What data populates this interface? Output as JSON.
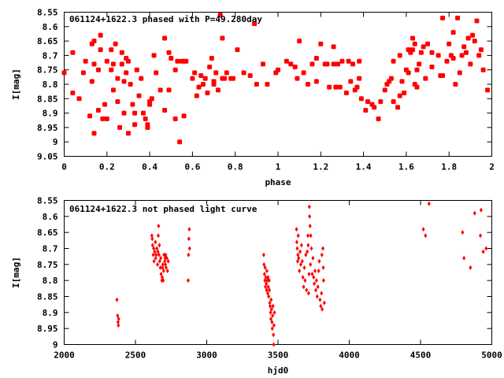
{
  "colors": {
    "points": "#ff0000",
    "frame": "#000000",
    "background": "#ffffff"
  },
  "chart_data": [
    {
      "type": "scatter",
      "title": "061124+1622.3 phased with P=49.280day",
      "xlabel": "phase",
      "ylabel": "I[mag]",
      "xlim": [
        0,
        2
      ],
      "ylim": [
        8.55,
        9.05
      ],
      "y_inverted": true,
      "xticks": [
        "0",
        "0.2",
        "0.4",
        "0.6",
        "0.8",
        "1",
        "1.2",
        "1.4",
        "1.6",
        "1.8",
        "2"
      ],
      "yticks": [
        "8.55",
        "8.6",
        "8.65",
        "8.7",
        "8.75",
        "8.8",
        "8.85",
        "8.9",
        "8.95",
        "9",
        "9.05"
      ],
      "marker": "filled-circle-large",
      "points": [
        [
          0.0,
          8.76
        ],
        [
          0.04,
          8.83
        ],
        [
          0.04,
          8.69
        ],
        [
          0.07,
          8.85
        ],
        [
          0.09,
          8.76
        ],
        [
          0.1,
          8.72
        ],
        [
          0.12,
          8.91
        ],
        [
          0.13,
          8.79
        ],
        [
          0.13,
          8.66
        ],
        [
          0.14,
          8.73
        ],
        [
          0.14,
          8.65
        ],
        [
          0.14,
          8.97
        ],
        [
          0.16,
          8.89
        ],
        [
          0.16,
          8.75
        ],
        [
          0.17,
          8.68
        ],
        [
          0.17,
          8.63
        ],
        [
          0.18,
          8.92
        ],
        [
          0.19,
          8.87
        ],
        [
          0.2,
          8.92
        ],
        [
          0.2,
          8.72
        ],
        [
          0.22,
          8.75
        ],
        [
          0.22,
          8.68
        ],
        [
          0.23,
          8.82
        ],
        [
          0.23,
          8.73
        ],
        [
          0.24,
          8.66
        ],
        [
          0.25,
          8.86
        ],
        [
          0.25,
          8.78
        ],
        [
          0.26,
          8.95
        ],
        [
          0.27,
          8.73
        ],
        [
          0.27,
          8.69
        ],
        [
          0.28,
          8.9
        ],
        [
          0.28,
          8.79
        ],
        [
          0.29,
          8.76
        ],
        [
          0.29,
          8.71
        ],
        [
          0.3,
          8.97
        ],
        [
          0.3,
          8.72
        ],
        [
          0.31,
          8.8
        ],
        [
          0.32,
          8.87
        ],
        [
          0.33,
          8.94
        ],
        [
          0.33,
          8.9
        ],
        [
          0.34,
          8.75
        ],
        [
          0.35,
          8.84
        ],
        [
          0.36,
          8.78
        ],
        [
          0.37,
          8.9
        ],
        [
          0.38,
          8.92
        ],
        [
          0.39,
          8.94
        ],
        [
          0.39,
          8.95
        ],
        [
          0.4,
          8.87
        ],
        [
          0.4,
          8.86
        ],
        [
          0.41,
          8.85
        ],
        [
          0.42,
          8.7
        ],
        [
          0.43,
          8.76
        ],
        [
          0.45,
          8.82
        ],
        [
          0.47,
          8.89
        ],
        [
          0.47,
          8.64
        ],
        [
          0.49,
          8.82
        ],
        [
          0.49,
          8.69
        ],
        [
          0.5,
          8.71
        ],
        [
          0.52,
          8.92
        ],
        [
          0.52,
          8.75
        ],
        [
          0.53,
          8.72
        ],
        [
          0.54,
          9.0
        ],
        [
          0.55,
          8.72
        ],
        [
          0.56,
          8.91
        ],
        [
          0.56,
          8.72
        ],
        [
          0.57,
          8.72
        ],
        [
          0.6,
          8.78
        ],
        [
          0.61,
          8.76
        ],
        [
          0.62,
          8.84
        ],
        [
          0.63,
          8.81
        ],
        [
          0.64,
          8.77
        ],
        [
          0.65,
          8.8
        ],
        [
          0.66,
          8.78
        ],
        [
          0.67,
          8.83
        ],
        [
          0.68,
          8.74
        ],
        [
          0.69,
          8.71
        ],
        [
          0.7,
          8.8
        ],
        [
          0.7,
          8.79
        ],
        [
          0.71,
          8.76
        ],
        [
          0.72,
          8.82
        ],
        [
          0.73,
          8.56
        ],
        [
          0.74,
          8.64
        ],
        [
          0.74,
          8.78
        ],
        [
          0.75,
          8.78
        ],
        [
          0.76,
          8.76
        ],
        [
          0.78,
          8.78
        ],
        [
          0.79,
          8.78
        ],
        [
          0.81,
          8.68
        ],
        [
          0.84,
          8.76
        ],
        [
          0.87,
          8.77
        ],
        [
          0.89,
          8.59
        ],
        [
          0.9,
          8.8
        ],
        [
          0.93,
          8.73
        ],
        [
          0.95,
          8.8
        ],
        [
          0.99,
          8.76
        ],
        [
          1.0,
          8.75
        ],
        [
          1.04,
          8.72
        ],
        [
          1.06,
          8.73
        ],
        [
          1.08,
          8.74
        ],
        [
          1.09,
          8.78
        ],
        [
          1.1,
          8.65
        ],
        [
          1.12,
          8.76
        ],
        [
          1.14,
          8.8
        ],
        [
          1.16,
          8.73
        ],
        [
          1.18,
          8.71
        ],
        [
          1.18,
          8.79
        ],
        [
          1.2,
          8.66
        ],
        [
          1.22,
          8.73
        ],
        [
          1.23,
          8.73
        ],
        [
          1.24,
          8.81
        ],
        [
          1.26,
          8.67
        ],
        [
          1.26,
          8.73
        ],
        [
          1.27,
          8.81
        ],
        [
          1.28,
          8.73
        ],
        [
          1.29,
          8.81
        ],
        [
          1.3,
          8.72
        ],
        [
          1.32,
          8.83
        ],
        [
          1.33,
          8.72
        ],
        [
          1.34,
          8.79
        ],
        [
          1.35,
          8.73
        ],
        [
          1.36,
          8.82
        ],
        [
          1.37,
          8.81
        ],
        [
          1.38,
          8.78
        ],
        [
          1.38,
          8.72
        ],
        [
          1.39,
          8.85
        ],
        [
          1.41,
          8.89
        ],
        [
          1.42,
          8.86
        ],
        [
          1.44,
          8.87
        ],
        [
          1.45,
          8.88
        ],
        [
          1.47,
          8.92
        ],
        [
          1.48,
          8.86
        ],
        [
          1.5,
          8.82
        ],
        [
          1.51,
          8.8
        ],
        [
          1.52,
          8.79
        ],
        [
          1.53,
          8.78
        ],
        [
          1.54,
          8.72
        ],
        [
          1.54,
          8.86
        ],
        [
          1.56,
          8.88
        ],
        [
          1.57,
          8.84
        ],
        [
          1.57,
          8.7
        ],
        [
          1.58,
          8.79
        ],
        [
          1.59,
          8.83
        ],
        [
          1.6,
          8.75
        ],
        [
          1.61,
          8.76
        ],
        [
          1.61,
          8.68
        ],
        [
          1.62,
          8.69
        ],
        [
          1.63,
          8.64
        ],
        [
          1.63,
          8.68
        ],
        [
          1.64,
          8.66
        ],
        [
          1.64,
          8.8
        ],
        [
          1.65,
          8.81
        ],
        [
          1.65,
          8.75
        ],
        [
          1.66,
          8.73
        ],
        [
          1.67,
          8.69
        ],
        [
          1.68,
          8.67
        ],
        [
          1.69,
          8.78
        ],
        [
          1.7,
          8.66
        ],
        [
          1.72,
          8.74
        ],
        [
          1.72,
          8.69
        ],
        [
          1.75,
          8.7
        ],
        [
          1.76,
          8.77
        ],
        [
          1.77,
          8.77
        ],
        [
          1.77,
          8.57
        ],
        [
          1.79,
          8.72
        ],
        [
          1.8,
          8.66
        ],
        [
          1.81,
          8.7
        ],
        [
          1.82,
          8.71
        ],
        [
          1.82,
          8.62
        ],
        [
          1.83,
          8.8
        ],
        [
          1.84,
          8.57
        ],
        [
          1.85,
          8.76
        ],
        [
          1.86,
          8.7
        ],
        [
          1.87,
          8.67
        ],
        [
          1.88,
          8.69
        ],
        [
          1.89,
          8.64
        ],
        [
          1.9,
          8.73
        ],
        [
          1.91,
          8.63
        ],
        [
          1.92,
          8.65
        ],
        [
          1.93,
          8.58
        ],
        [
          1.94,
          8.7
        ],
        [
          1.95,
          8.68
        ],
        [
          1.96,
          8.75
        ],
        [
          1.98,
          8.82
        ]
      ]
    },
    {
      "type": "scatter",
      "title": "061124+1622.3 not phased light curve",
      "xlabel": "hjd0",
      "ylabel": "I[mag]",
      "xlim": [
        2000,
        5000
      ],
      "ylim": [
        8.55,
        9.0
      ],
      "y_inverted": true,
      "xticks": [
        "2000",
        "2500",
        "3000",
        "3500",
        "4000",
        "4500",
        "5000"
      ],
      "yticks": [
        "8.55",
        "8.6",
        "8.65",
        "8.7",
        "8.75",
        "8.8",
        "8.85",
        "8.9",
        "8.95",
        "9"
      ],
      "marker": "diamond-small",
      "points": [
        [
          2370,
          8.86
        ],
        [
          2375,
          8.91
        ],
        [
          2378,
          8.93
        ],
        [
          2380,
          8.94
        ],
        [
          2382,
          8.92
        ],
        [
          2615,
          8.66
        ],
        [
          2618,
          8.67
        ],
        [
          2620,
          8.69
        ],
        [
          2625,
          8.72
        ],
        [
          2628,
          8.7
        ],
        [
          2630,
          8.74
        ],
        [
          2635,
          8.71
        ],
        [
          2640,
          8.68
        ],
        [
          2642,
          8.73
        ],
        [
          2645,
          8.72
        ],
        [
          2650,
          8.7
        ],
        [
          2655,
          8.75
        ],
        [
          2658,
          8.71
        ],
        [
          2660,
          8.66
        ],
        [
          2662,
          8.63
        ],
        [
          2665,
          8.72
        ],
        [
          2668,
          8.69
        ],
        [
          2670,
          8.74
        ],
        [
          2675,
          8.76
        ],
        [
          2678,
          8.73
        ],
        [
          2680,
          8.78
        ],
        [
          2685,
          8.8
        ],
        [
          2688,
          8.79
        ],
        [
          2690,
          8.76
        ],
        [
          2692,
          8.75
        ],
        [
          2695,
          8.8
        ],
        [
          2698,
          8.77
        ],
        [
          2700,
          8.72
        ],
        [
          2705,
          8.74
        ],
        [
          2708,
          8.73
        ],
        [
          2710,
          8.75
        ],
        [
          2712,
          8.72
        ],
        [
          2715,
          8.76
        ],
        [
          2720,
          8.73
        ],
        [
          2725,
          8.77
        ],
        [
          2730,
          8.74
        ],
        [
          2870,
          8.8
        ],
        [
          2872,
          8.72
        ],
        [
          2875,
          8.67
        ],
        [
          2878,
          8.64
        ],
        [
          2880,
          8.7
        ],
        [
          3400,
          8.72
        ],
        [
          3402,
          8.75
        ],
        [
          3405,
          8.78
        ],
        [
          3408,
          8.8
        ],
        [
          3410,
          8.76
        ],
        [
          3412,
          8.82
        ],
        [
          3415,
          8.79
        ],
        [
          3418,
          8.81
        ],
        [
          3420,
          8.83
        ],
        [
          3422,
          8.77
        ],
        [
          3425,
          8.8
        ],
        [
          3428,
          8.84
        ],
        [
          3430,
          8.79
        ],
        [
          3432,
          8.82
        ],
        [
          3435,
          8.85
        ],
        [
          3438,
          8.8
        ],
        [
          3440,
          8.83
        ],
        [
          3442,
          8.87
        ],
        [
          3445,
          8.88
        ],
        [
          3448,
          8.9
        ],
        [
          3450,
          8.92
        ],
        [
          3452,
          8.86
        ],
        [
          3455,
          8.89
        ],
        [
          3458,
          8.93
        ],
        [
          3460,
          8.95
        ],
        [
          3462,
          8.91
        ],
        [
          3465,
          8.88
        ],
        [
          3468,
          8.97
        ],
        [
          3470,
          9.0
        ],
        [
          3472,
          8.94
        ],
        [
          3475,
          8.9
        ],
        [
          3630,
          8.64
        ],
        [
          3632,
          8.68
        ],
        [
          3635,
          8.7
        ],
        [
          3638,
          8.74
        ],
        [
          3640,
          8.72
        ],
        [
          3642,
          8.66
        ],
        [
          3645,
          8.73
        ],
        [
          3650,
          8.77
        ],
        [
          3655,
          8.71
        ],
        [
          3660,
          8.75
        ],
        [
          3665,
          8.69
        ],
        [
          3670,
          8.74
        ],
        [
          3675,
          8.79
        ],
        [
          3680,
          8.82
        ],
        [
          3685,
          8.76
        ],
        [
          3690,
          8.8
        ],
        [
          3695,
          8.72
        ],
        [
          3700,
          8.83
        ],
        [
          3705,
          8.71
        ],
        [
          3710,
          8.66
        ],
        [
          3712,
          8.69
        ],
        [
          3715,
          8.84
        ],
        [
          3718,
          8.78
        ],
        [
          3720,
          8.57
        ],
        [
          3722,
          8.6
        ],
        [
          3725,
          8.63
        ],
        [
          3728,
          8.75
        ],
        [
          3730,
          8.66
        ],
        [
          3735,
          8.7
        ],
        [
          3740,
          8.78
        ],
        [
          3745,
          8.73
        ],
        [
          3750,
          8.79
        ],
        [
          3755,
          8.81
        ],
        [
          3760,
          8.77
        ],
        [
          3765,
          8.83
        ],
        [
          3770,
          8.8
        ],
        [
          3775,
          8.85
        ],
        [
          3780,
          8.82
        ],
        [
          3785,
          8.77
        ],
        [
          3790,
          8.74
        ],
        [
          3795,
          8.86
        ],
        [
          3800,
          8.88
        ],
        [
          3805,
          8.84
        ],
        [
          3808,
          8.72
        ],
        [
          3810,
          8.89
        ],
        [
          3815,
          8.7
        ],
        [
          3818,
          8.76
        ],
        [
          3820,
          8.8
        ],
        [
          3825,
          8.87
        ],
        [
          4520,
          8.64
        ],
        [
          4535,
          8.66
        ],
        [
          4560,
          8.56
        ],
        [
          4795,
          8.65
        ],
        [
          4805,
          8.73
        ],
        [
          4850,
          8.76
        ],
        [
          4880,
          8.59
        ],
        [
          4920,
          8.66
        ],
        [
          4925,
          8.58
        ],
        [
          4940,
          8.71
        ],
        [
          4960,
          8.7
        ]
      ]
    }
  ]
}
